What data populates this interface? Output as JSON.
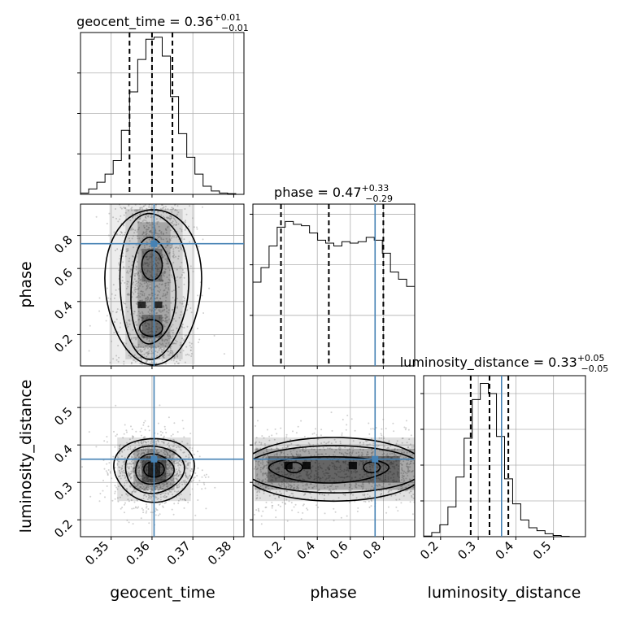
{
  "chart_data": {
    "type": "corner",
    "parameters": [
      "geocent_time",
      "phase",
      "luminosity_distance"
    ],
    "titles": [
      {
        "label": "geocent_time = 0.36",
        "upper": "+0.01",
        "lower": "−0.01"
      },
      {
        "label": "phase = 0.47",
        "upper": "+0.33",
        "lower": "−0.29"
      },
      {
        "label": "luminosity_distance = 0.33",
        "upper": "+0.05",
        "lower": "−0.05"
      }
    ],
    "axis_labels": {
      "x": [
        "geocent_time",
        "phase",
        "luminosity_distance"
      ],
      "y": [
        "phase",
        "luminosity_distance"
      ]
    },
    "ranges": {
      "geocent_time": [
        0.3425,
        0.3825
      ],
      "phase": [
        0.01,
        0.99
      ],
      "luminosity_distance": [
        0.155,
        0.585
      ]
    },
    "ticks": {
      "geocent_time": [
        "0.35",
        "0.36",
        "0.37",
        "0.38"
      ],
      "phase": [
        "0.2",
        "0.4",
        "0.6",
        "0.8"
      ],
      "luminosity_distance": [
        "0.2",
        "0.3",
        "0.4",
        "0.5"
      ]
    },
    "truth": {
      "geocent_time": 0.3605,
      "phase": 0.75,
      "luminosity_distance": 0.362
    },
    "quantiles": {
      "geocent_time": [
        0.3545,
        0.36,
        0.365
      ],
      "phase": [
        0.18,
        0.47,
        0.8
      ],
      "luminosity_distance": [
        0.28,
        0.33,
        0.38
      ]
    },
    "histograms": {
      "geocent_time": {
        "bin_edges": [
          0.3425,
          0.3445,
          0.3465,
          0.3485,
          0.3505,
          0.3525,
          0.3545,
          0.3565,
          0.3585,
          0.3605,
          0.3625,
          0.3645,
          0.3665,
          0.3685,
          0.3705,
          0.3725,
          0.3745,
          0.3765,
          0.3785,
          0.3805,
          0.3825
        ],
        "counts": [
          2,
          8,
          18,
          30,
          50,
          95,
          152,
          200,
          230,
          233,
          205,
          145,
          90,
          55,
          30,
          12,
          5,
          2,
          1,
          0
        ]
      },
      "phase": {
        "bin_edges": [
          0.01,
          0.059,
          0.108,
          0.157,
          0.206,
          0.255,
          0.304,
          0.353,
          0.402,
          0.451,
          0.5,
          0.549,
          0.598,
          0.647,
          0.696,
          0.745,
          0.794,
          0.843,
          0.892,
          0.941,
          0.99
        ],
        "counts": [
          0.58,
          0.68,
          0.83,
          0.96,
          1.0,
          0.98,
          0.97,
          0.92,
          0.87,
          0.85,
          0.83,
          0.86,
          0.85,
          0.86,
          0.89,
          0.87,
          0.78,
          0.65,
          0.6,
          0.55
        ]
      },
      "luminosity_distance": {
        "bin_edges": [
          0.155,
          0.1765,
          0.198,
          0.2195,
          0.241,
          0.2625,
          0.284,
          0.3055,
          0.327,
          0.3485,
          0.37,
          0.3915,
          0.413,
          0.4345,
          0.456,
          0.4775,
          0.499,
          0.5205,
          0.542,
          0.5635,
          0.585
        ],
        "counts": [
          1,
          7,
          20,
          50,
          100,
          165,
          230,
          257,
          240,
          168,
          97,
          55,
          28,
          15,
          10,
          5,
          2,
          0.5,
          0,
          0
        ]
      }
    },
    "hist_ymax": [
      240,
      1.12,
      270
    ],
    "style": {
      "truth_color": "#4682b4",
      "quantile_style": "dashed",
      "grid": true,
      "tick_label_rotation_deg": 45
    }
  }
}
